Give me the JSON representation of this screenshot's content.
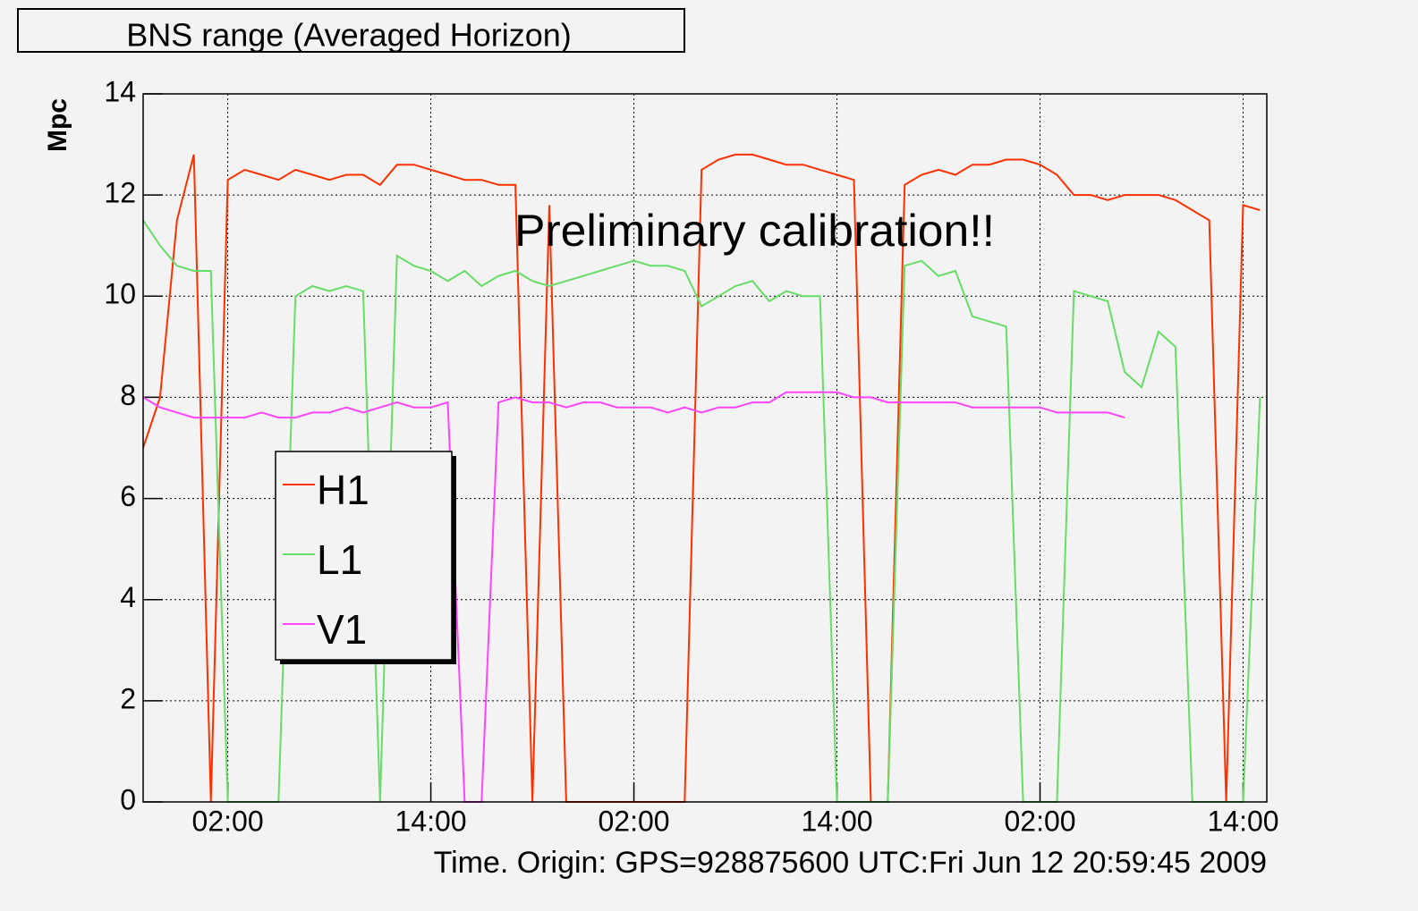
{
  "chart_data": {
    "type": "line",
    "title": "BNS range (Averaged Horizon)",
    "y_label": "Mpc",
    "x_label": "Time. Origin: GPS=928875600 UTC:Fri Jun 12 20:59:45 2009",
    "annotation": "Preliminary calibration!!",
    "x": [
      0,
      1,
      2,
      3,
      4,
      5,
      6,
      7,
      8,
      9,
      10,
      11,
      12,
      13,
      14,
      15,
      16,
      17,
      18,
      19,
      20,
      21,
      22,
      23,
      24,
      25,
      26,
      27,
      28,
      29,
      30,
      31,
      32,
      33,
      34,
      35,
      36,
      37,
      38,
      39,
      40,
      41,
      42,
      43,
      44,
      45,
      46,
      47,
      48,
      49,
      50,
      51,
      52,
      53,
      54,
      55,
      56,
      57,
      58,
      59,
      60,
      61,
      62,
      63,
      64,
      65,
      66
    ],
    "series": [
      {
        "name": "H1",
        "color": "#ff3000",
        "values": [
          7,
          8,
          11.5,
          12.8,
          0,
          12.3,
          12.5,
          12.4,
          12.3,
          12.5,
          12.4,
          12.3,
          12.4,
          12.4,
          12.2,
          12.6,
          12.6,
          12.5,
          12.4,
          12.3,
          12.3,
          12.2,
          12.2,
          0,
          11.8,
          0,
          0,
          0,
          0,
          0,
          0,
          0,
          0,
          12.5,
          12.7,
          12.8,
          12.8,
          12.7,
          12.6,
          12.6,
          12.5,
          12.4,
          12.3,
          0,
          0,
          12.2,
          12.4,
          12.5,
          12.4,
          12.6,
          12.6,
          12.7,
          12.7,
          12.6,
          12.4,
          12.0,
          12.0,
          11.9,
          12.0,
          12.0,
          12.0,
          11.9,
          11.7,
          11.5,
          0,
          11.8,
          11.7
        ]
      },
      {
        "name": "L1",
        "color": "#66dd66",
        "values": [
          11.5,
          11,
          10.6,
          10.5,
          10.5,
          0,
          0,
          0,
          0,
          10,
          10.2,
          10.1,
          10.2,
          10.1,
          0,
          10.8,
          10.6,
          10.5,
          10.3,
          10.5,
          10.2,
          10.4,
          10.5,
          10.3,
          10.2,
          10.3,
          10.4,
          10.5,
          10.6,
          10.7,
          10.6,
          10.6,
          10.5,
          9.8,
          10,
          10.2,
          10.3,
          9.9,
          10.1,
          10,
          10,
          0,
          0,
          0,
          0,
          10.6,
          10.7,
          10.4,
          10.5,
          9.6,
          9.5,
          9.4,
          0,
          0,
          0,
          10.1,
          10,
          9.9,
          8.5,
          8.2,
          9.3,
          9,
          0,
          0,
          0,
          0,
          8
        ]
      },
      {
        "name": "V1",
        "color": "#ff44ff",
        "values": [
          8,
          7.8,
          7.7,
          7.6,
          7.6,
          7.6,
          7.6,
          7.7,
          7.6,
          7.6,
          7.7,
          7.7,
          7.8,
          7.7,
          7.8,
          7.9,
          7.8,
          7.8,
          7.9,
          0,
          0,
          7.9,
          8,
          7.9,
          7.9,
          7.8,
          7.9,
          7.9,
          7.8,
          7.8,
          7.8,
          7.7,
          7.8,
          7.7,
          7.8,
          7.8,
          7.9,
          7.9,
          8.1,
          8.1,
          8.1,
          8.1,
          8.0,
          8.0,
          7.9,
          7.9,
          7.9,
          7.9,
          7.9,
          7.8,
          7.8,
          7.8,
          7.8,
          7.8,
          7.7,
          7.7,
          7.7,
          7.7,
          7.6,
          null,
          null,
          null,
          null,
          null,
          null,
          null,
          null
        ]
      }
    ],
    "xlim": [
      0,
      66.4
    ],
    "xticks": [
      {
        "value": 5,
        "label": "02:00"
      },
      {
        "value": 17,
        "label": "14:00"
      },
      {
        "value": 29,
        "label": "02:00"
      },
      {
        "value": 41,
        "label": "14:00"
      },
      {
        "value": 53,
        "label": "02:00"
      },
      {
        "value": 65,
        "label": "14:00"
      }
    ],
    "ylim": [
      0,
      14
    ],
    "yticks": [
      0,
      2,
      4,
      6,
      8,
      10,
      12,
      14
    ],
    "grid": true,
    "legend": "lower left"
  }
}
